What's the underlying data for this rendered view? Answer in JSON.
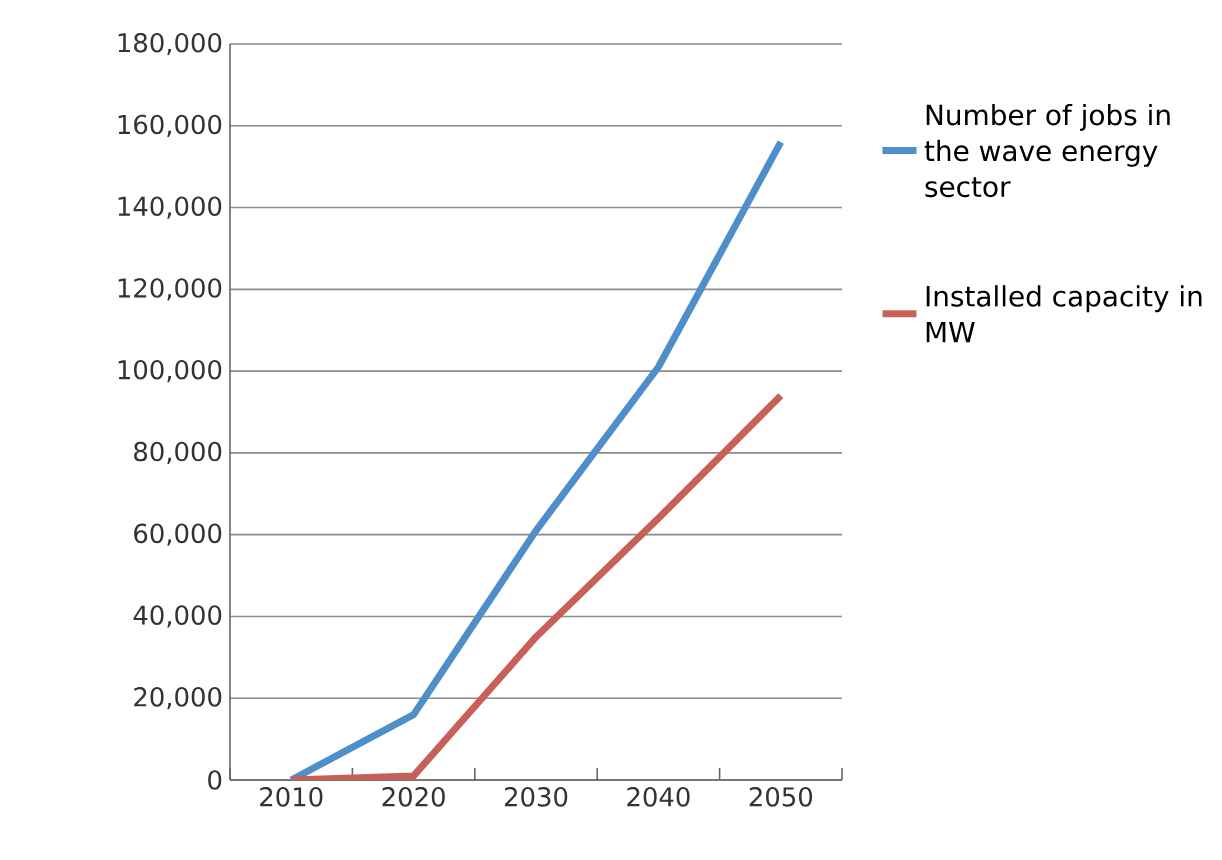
{
  "chart_data": {
    "type": "line",
    "categories": [
      "2010",
      "2020",
      "2030",
      "2040",
      "2050"
    ],
    "series": [
      {
        "name": "Number of jobs in the wave energy sector",
        "color": "#4f8fc9",
        "values": [
          0,
          16000,
          61000,
          101000,
          156000
        ]
      },
      {
        "name": "Installed capacity in MW",
        "color": "#c8605a",
        "values": [
          0,
          1000,
          35000,
          64000,
          94000
        ]
      }
    ],
    "ylim": [
      0,
      180000
    ],
    "yticks": [
      0,
      {
        "value": 20000,
        "label": "20,000"
      },
      {
        "value": 40000,
        "label": "40,000"
      },
      {
        "value": 60000,
        "label": "60,000"
      },
      {
        "value": 80000,
        "label": "80,000"
      },
      {
        "value": 100000,
        "label": "100,000"
      },
      {
        "value": 120000,
        "label": "120,000"
      },
      {
        "value": 140000,
        "label": "140,000"
      },
      {
        "value": 160000,
        "label": "160,000"
      },
      {
        "value": 180000,
        "label": "180,000"
      }
    ],
    "grid": "y",
    "legend": "right",
    "marker": "none",
    "line_style": "solid"
  }
}
